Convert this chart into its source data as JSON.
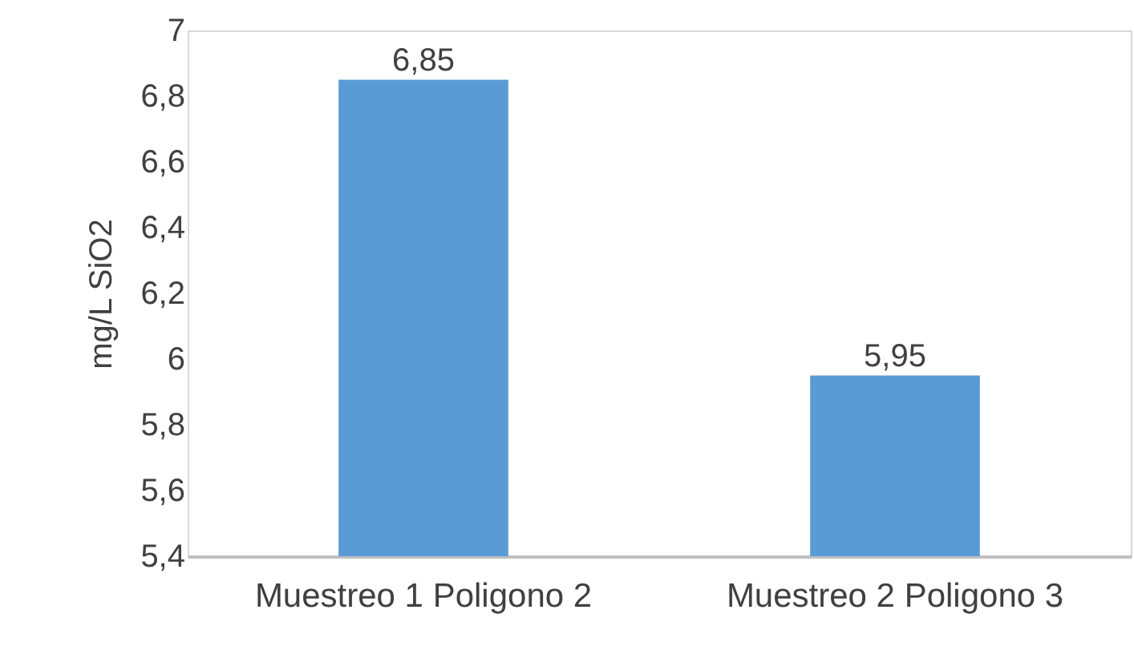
{
  "chart_data": {
    "type": "bar",
    "ylabel": "mg/L SiO2",
    "categories": [
      "Muestreo 1 Poligono 2",
      "Muestreo 2 Poligono 3"
    ],
    "values": [
      6.85,
      5.95
    ],
    "value_labels": [
      "6,85",
      "5,95"
    ],
    "color": "#5b9bd5",
    "ylim": [
      5.4,
      7
    ],
    "yticks": [
      {
        "value": 5.4,
        "label": "5,4"
      },
      {
        "value": 5.6,
        "label": "5,6"
      },
      {
        "value": 5.8,
        "label": "5,8"
      },
      {
        "value": 6,
        "label": "6"
      },
      {
        "value": 6.2,
        "label": "6,2"
      },
      {
        "value": 6.4,
        "label": "6,4"
      },
      {
        "value": 6.6,
        "label": "6,6"
      },
      {
        "value": 6.8,
        "label": "6,8"
      },
      {
        "value": 7,
        "label": "7"
      }
    ],
    "grid": false
  }
}
